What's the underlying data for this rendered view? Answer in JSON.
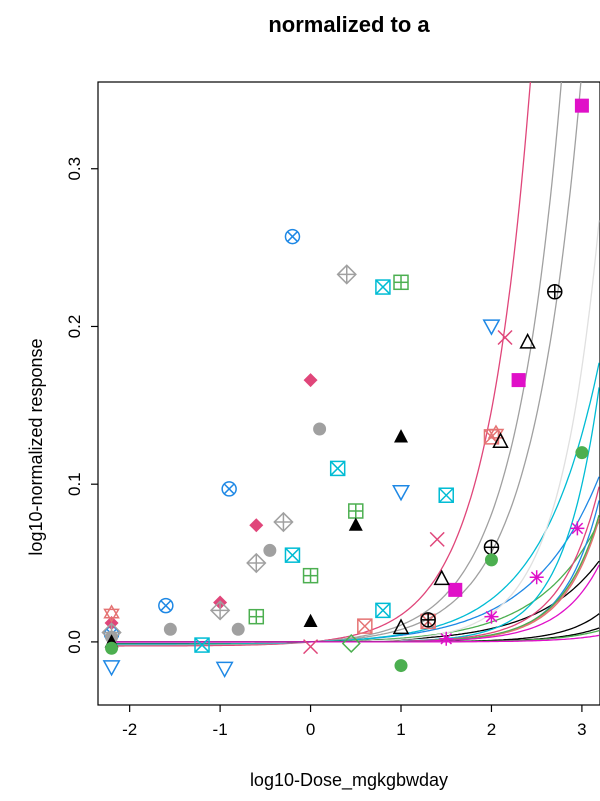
{
  "chart_data": {
    "type": "scatter",
    "title": "normalized to a",
    "xlabel": "log10-Dose_mgkgbwday",
    "ylabel": "log10-normalized response",
    "xlim": [
      -2.35,
      3.2
    ],
    "ylim": [
      -0.04,
      0.355
    ],
    "x_ticks": [
      -2,
      -1,
      0,
      1,
      2,
      3
    ],
    "x_tick_labels": [
      "-2",
      "-1",
      "0",
      "1",
      "2",
      "3"
    ],
    "y_ticks": [
      0.0,
      0.1,
      0.2,
      0.3
    ],
    "y_tick_labels": [
      "0.0",
      "0.1",
      "0.2",
      "0.3"
    ],
    "grid": false,
    "legend": "none",
    "series": [
      {
        "color": "#1e88e5",
        "marker": "circle-x",
        "x": [
          -2.2,
          -1.6,
          -0.9,
          -0.2
        ],
        "y": [
          0.005,
          0.023,
          0.097,
          0.257
        ],
        "curve": {
          "a": 0.0015,
          "b": 0.58
        }
      },
      {
        "color": "#e0467a",
        "marker": "diamond-filled",
        "x": [
          -2.2,
          -1.0,
          -0.6,
          0.0
        ],
        "y": [
          0.012,
          0.025,
          0.074,
          0.166
        ],
        "curve": {
          "a": 0.0026,
          "b": 0.88
        }
      },
      {
        "color": "#a0a0a0",
        "marker": "circle-filled",
        "x": [
          -2.2,
          -1.55,
          -0.8,
          -0.45,
          0.1
        ],
        "y": [
          0.003,
          0.008,
          0.008,
          0.058,
          0.135
        ],
        "curve": {
          "a": 0.0019,
          "b": 0.82
        }
      },
      {
        "color": "#a0a0a0",
        "marker": "diamond-plus",
        "x": [
          -2.2,
          -1.0,
          -0.6,
          -0.3,
          0.4
        ],
        "y": [
          0.006,
          0.02,
          0.05,
          0.076,
          0.233
        ],
        "curve": {
          "a": 0.0015,
          "b": 0.795
        }
      },
      {
        "color": "#00bcd4",
        "marker": "square-x",
        "x": [
          -1.2,
          -0.2,
          0.3,
          0.8
        ],
        "y": [
          -0.002,
          0.055,
          0.11,
          0.225
        ],
        "curve": {
          "a": 0.0013,
          "b": 0.67
        }
      },
      {
        "color": "#4caf50",
        "marker": "square-plus",
        "x": [
          -0.6,
          0.0,
          0.5,
          1.0
        ],
        "y": [
          0.016,
          0.042,
          0.083,
          0.228
        ],
        "curve": {
          "a": 0.0007,
          "b": 0.64
        }
      },
      {
        "color": "#000000",
        "marker": "triangle-filled",
        "x": [
          -2.2,
          0.0,
          0.5,
          1.0
        ],
        "y": [
          0.0,
          0.013,
          0.074,
          0.13
        ],
        "curve": {
          "a": 0.00047,
          "b": 0.64
        }
      },
      {
        "color": "#1e88e5",
        "marker": "triangle-down",
        "x": [
          -2.2,
          -0.95,
          1.0,
          2.0
        ],
        "y": [
          -0.016,
          -0.017,
          0.095,
          0.2
        ],
        "curve": {
          "a": 2.4e-05,
          "b": 1.12
        }
      },
      {
        "color": "#00bcd4",
        "marker": "square-x",
        "x": [
          0.8,
          1.5
        ],
        "y": [
          0.02,
          0.093
        ],
        "curve": {
          "a": 5e-05,
          "b": 1.1
        }
      },
      {
        "color": "#e0467a",
        "marker": "x",
        "x": [
          0.0,
          1.4,
          2.15
        ],
        "y": [
          -0.003,
          0.065,
          0.193
        ],
        "curve": {
          "a": 5.1e-05,
          "b": 1.03
        }
      },
      {
        "color": "#e57373",
        "marker": "square-x",
        "x": [
          0.6,
          1.3,
          2.0
        ],
        "y": [
          0.01,
          0.013,
          0.13
        ],
        "curve": {
          "a": 2.6e-05,
          "b": 1.09
        }
      },
      {
        "color": "#e57373",
        "marker": "star-of-david",
        "x": [
          -2.2,
          2.05
        ],
        "y": [
          0.018,
          0.132
        ],
        "curve": {
          "a": 3.1e-05,
          "b": 1.07
        }
      },
      {
        "color": "#4caf50",
        "marker": "diamond",
        "x": [
          0.45
        ],
        "y": [
          -0.001
        ],
        "curve": {
          "a": 3.6e-05,
          "b": 1.05
        }
      },
      {
        "color": "#e0e0e0",
        "marker": "none",
        "x": [],
        "y": [],
        "curve": {
          "a": 0.0002,
          "b": 0.98
        }
      },
      {
        "color": "#e010c8",
        "marker": "square-filled",
        "x": [
          1.6,
          2.3,
          3.0
        ],
        "y": [
          0.033,
          0.166,
          0.34
        ],
        "curve": {
          "a": 3.15e-05,
          "b": 1.0
        }
      },
      {
        "color": "#000000",
        "marker": "triangle",
        "x": [
          1.0,
          1.45,
          2.1,
          2.4
        ],
        "y": [
          0.009,
          0.04,
          0.127,
          0.19
        ],
        "curve": {
          "a": 6.9e-06,
          "b": 1.07
        }
      },
      {
        "color": "#000000",
        "marker": "circle-plus",
        "x": [
          1.3,
          2.0,
          2.7
        ],
        "y": [
          0.014,
          0.06,
          0.222
        ],
        "curve": {
          "a": 5.7e-06,
          "b": 1.0
        }
      },
      {
        "color": "#4caf50",
        "marker": "circle-filled",
        "x": [
          -2.2,
          1.0,
          2.0,
          3.0
        ],
        "y": [
          -0.004,
          -0.015,
          0.052,
          0.12
        ],
        "curve": {
          "a": 5e-06,
          "b": 0.99
        }
      },
      {
        "color": "#e010c8",
        "marker": "asterisk",
        "x": [
          1.5,
          2.0,
          2.5,
          2.95
        ],
        "y": [
          0.002,
          0.016,
          0.041,
          0.072
        ],
        "curve": {
          "a": 2e-06,
          "b": 1.04
        }
      }
    ]
  }
}
